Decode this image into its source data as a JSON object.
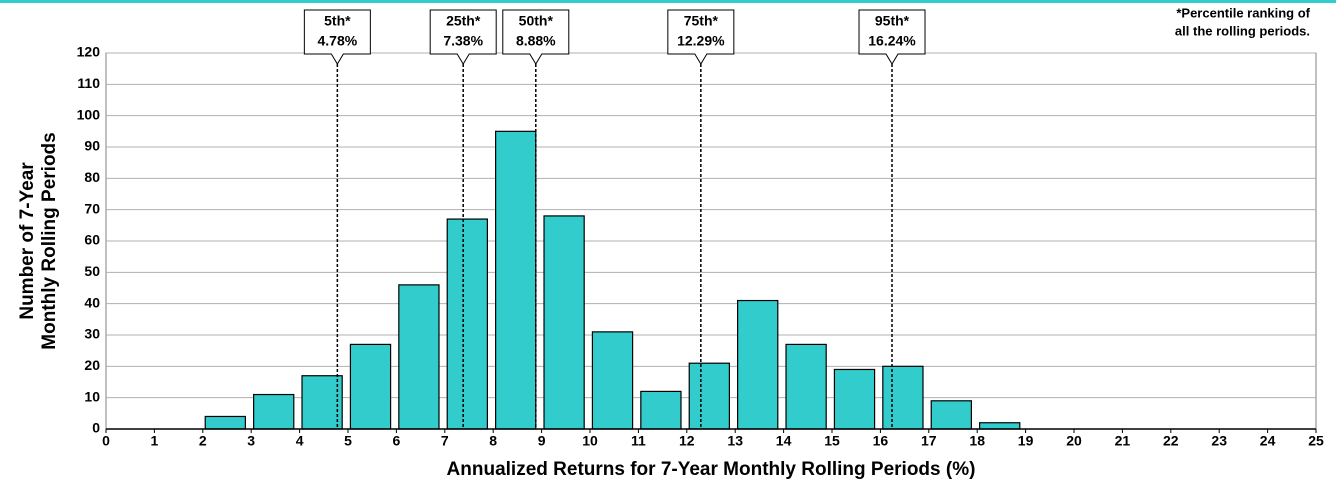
{
  "chart_data": {
    "type": "histogram",
    "bins": [
      0,
      1,
      2,
      3,
      4,
      5,
      6,
      7,
      8,
      9,
      10,
      11,
      12,
      13,
      14,
      15,
      16,
      17,
      18,
      19,
      20,
      21,
      22,
      23,
      24,
      25
    ],
    "values": [
      0,
      0,
      4,
      11,
      17,
      27,
      46,
      67,
      95,
      68,
      31,
      12,
      21,
      41,
      27,
      19,
      20,
      9,
      2,
      0,
      0,
      0,
      0,
      0,
      0
    ],
    "color": "#33cccc",
    "xlim": [
      0,
      25
    ],
    "xticks": [
      0,
      1,
      2,
      3,
      4,
      5,
      6,
      7,
      8,
      9,
      10,
      11,
      12,
      13,
      14,
      15,
      16,
      17,
      18,
      19,
      20,
      21,
      22,
      23,
      24,
      25
    ],
    "ylim": [
      0,
      120
    ],
    "yticks": [
      0,
      10,
      20,
      30,
      40,
      50,
      60,
      70,
      80,
      90,
      100,
      110,
      120
    ],
    "grid": true,
    "xlabel": "Annualized Returns for 7-Year Monthly Rolling Periods (%)",
    "ylabel": [
      "Number of 7-Year",
      "Monthly Rolling Periods"
    ],
    "note": [
      "*Percentile ranking of",
      "all the rolling periods."
    ],
    "percentiles": [
      {
        "name": "5th*",
        "value": 4.78,
        "label": "4.78%"
      },
      {
        "name": "25th*",
        "value": 7.38,
        "label": "7.38%"
      },
      {
        "name": "50th*",
        "value": 8.88,
        "label": "8.88%"
      },
      {
        "name": "75th*",
        "value": 12.29,
        "label": "12.29%"
      },
      {
        "name": "95th*",
        "value": 16.24,
        "label": "16.24%"
      }
    ]
  }
}
